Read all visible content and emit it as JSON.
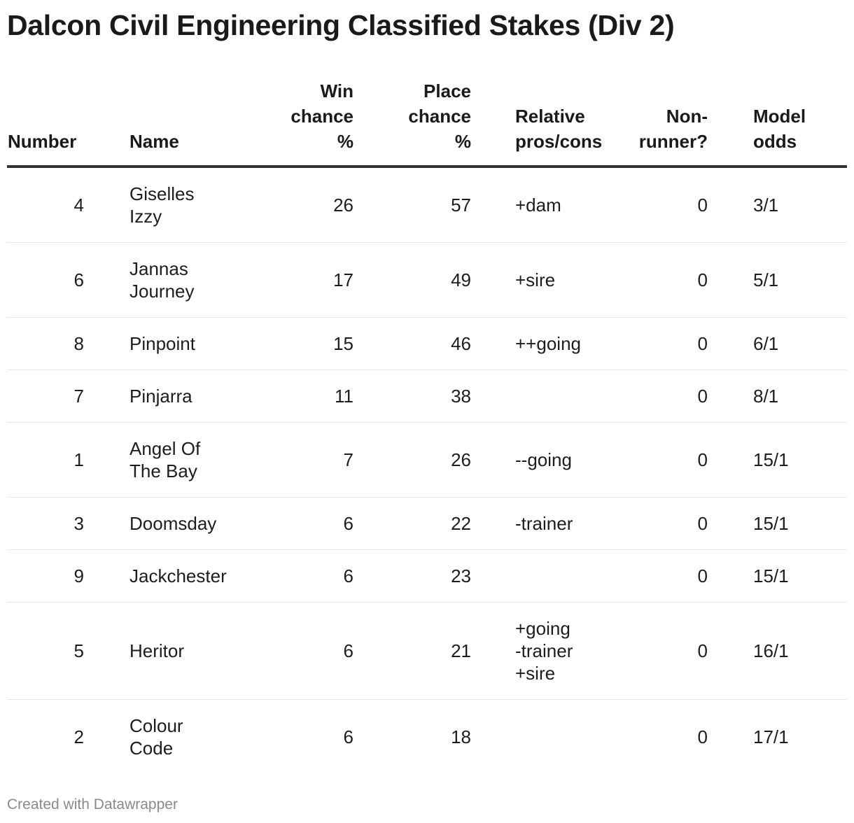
{
  "chart_data": {
    "type": "table",
    "title": "Dalcon Civil Engineering Classified Stakes (Div 2)",
    "columns": [
      {
        "key": "number",
        "lines": [
          "Number"
        ]
      },
      {
        "key": "name",
        "lines": [
          "Name"
        ]
      },
      {
        "key": "win",
        "lines": [
          "Win",
          "chance",
          "%"
        ]
      },
      {
        "key": "place",
        "lines": [
          "Place",
          "chance",
          "%"
        ]
      },
      {
        "key": "pros",
        "lines": [
          "Relative",
          "pros/cons"
        ]
      },
      {
        "key": "nonrunner",
        "lines": [
          "Non-",
          "runner?"
        ]
      },
      {
        "key": "odds",
        "lines": [
          "Model",
          "odds"
        ]
      }
    ],
    "rows": [
      {
        "number": "4",
        "name": [
          "Giselles",
          "Izzy"
        ],
        "win": "26",
        "place": "57",
        "pros": [
          "+dam"
        ],
        "nonrunner": "0",
        "odds": "3/1"
      },
      {
        "number": "6",
        "name": [
          "Jannas",
          "Journey"
        ],
        "win": "17",
        "place": "49",
        "pros": [
          "+sire"
        ],
        "nonrunner": "0",
        "odds": "5/1"
      },
      {
        "number": "8",
        "name": [
          "Pinpoint"
        ],
        "win": "15",
        "place": "46",
        "pros": [
          "++going"
        ],
        "nonrunner": "0",
        "odds": "6/1"
      },
      {
        "number": "7",
        "name": [
          "Pinjarra"
        ],
        "win": "11",
        "place": "38",
        "pros": [],
        "nonrunner": "0",
        "odds": "8/1"
      },
      {
        "number": "1",
        "name": [
          "Angel Of",
          "The Bay"
        ],
        "win": "7",
        "place": "26",
        "pros": [
          "--going"
        ],
        "nonrunner": "0",
        "odds": "15/1"
      },
      {
        "number": "3",
        "name": [
          "Doomsday"
        ],
        "win": "6",
        "place": "22",
        "pros": [
          "-trainer"
        ],
        "nonrunner": "0",
        "odds": "15/1"
      },
      {
        "number": "9",
        "name": [
          "Jackchester"
        ],
        "win": "6",
        "place": "23",
        "pros": [],
        "nonrunner": "0",
        "odds": "15/1"
      },
      {
        "number": "5",
        "name": [
          "Heritor"
        ],
        "win": "6",
        "place": "21",
        "pros": [
          "+going",
          "-trainer",
          "+sire"
        ],
        "nonrunner": "0",
        "odds": "16/1"
      },
      {
        "number": "2",
        "name": [
          "Colour",
          "Code"
        ],
        "win": "6",
        "place": "18",
        "pros": [],
        "nonrunner": "0",
        "odds": "17/1"
      }
    ]
  },
  "footer": {
    "credit": "Created with Datawrapper"
  },
  "colors": {
    "text": "#1d1d1d",
    "header_rule": "#333333",
    "row_rule": "#e6e6e6",
    "footer_text": "#8a8a8a"
  }
}
